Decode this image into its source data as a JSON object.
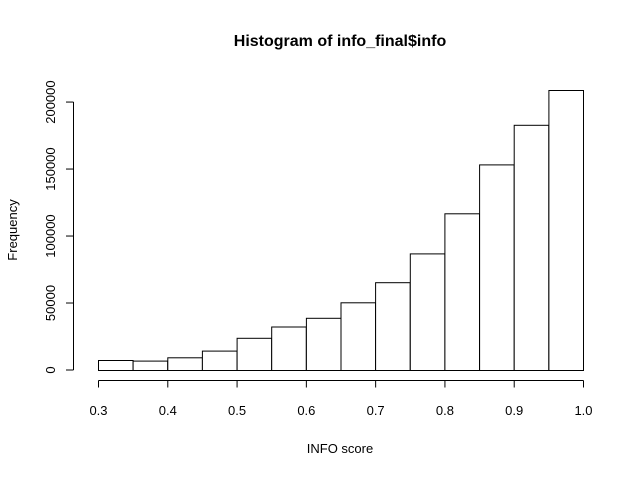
{
  "chart_data": {
    "type": "bar",
    "subtype": "histogram",
    "title": "Histogram of info_final$info",
    "xlabel": "INFO score",
    "ylabel": "Frequency",
    "bin_edges": [
      0.3,
      0.35,
      0.4,
      0.45,
      0.5,
      0.55,
      0.6,
      0.65,
      0.7,
      0.75,
      0.8,
      0.85,
      0.9,
      0.95,
      1.0
    ],
    "values": [
      7500,
      7000,
      9500,
      14500,
      24000,
      32500,
      39000,
      50500,
      65500,
      87000,
      117000,
      153500,
      183000,
      209000
    ],
    "xlim": [
      0.3,
      1.0
    ],
    "ylim": [
      0,
      209000
    ],
    "x_ticks": [
      0.3,
      0.4,
      0.5,
      0.6,
      0.7,
      0.8,
      0.9,
      1.0
    ],
    "x_tick_labels": [
      "0.3",
      "0.4",
      "0.5",
      "0.6",
      "0.7",
      "0.8",
      "0.9",
      "1.0"
    ],
    "y_ticks": [
      0,
      50000,
      100000,
      150000,
      200000
    ],
    "y_tick_labels": [
      "0",
      "50000",
      "100000",
      "150000",
      "200000"
    ],
    "grid": false,
    "bar_fill": "#ffffff",
    "bar_stroke": "#000000"
  }
}
